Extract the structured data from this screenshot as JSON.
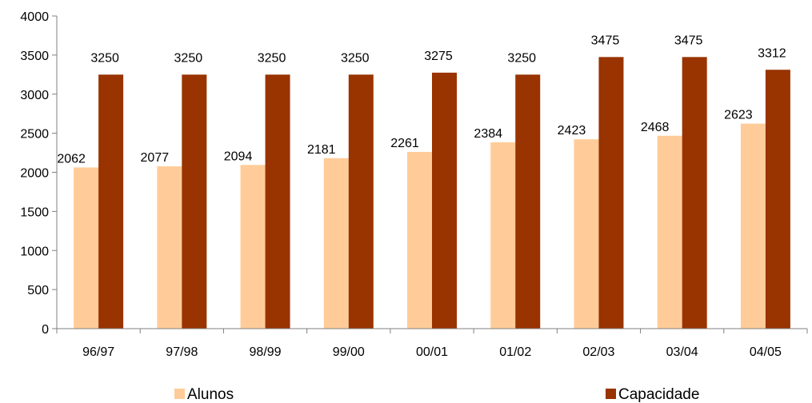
{
  "chart_data": {
    "type": "bar",
    "title": "",
    "xlabel": "",
    "ylabel": "",
    "categories": [
      "96/97",
      "97/98",
      "98/99",
      "99/00",
      "00/01",
      "01/02",
      "02/03",
      "03/04",
      "04/05"
    ],
    "series": [
      {
        "name": "Alunos",
        "color": "#FFCC99",
        "values": [
          2062,
          2077,
          2094,
          2181,
          2261,
          2384,
          2423,
          2468,
          2623
        ]
      },
      {
        "name": "Capacidade",
        "color": "#993300",
        "values": [
          3250,
          3250,
          3250,
          3250,
          3275,
          3250,
          3475,
          3475,
          3312
        ]
      }
    ],
    "ylim": [
      0,
      4000
    ],
    "yticks": [
      0,
      500,
      1000,
      1500,
      2000,
      2500,
      3000,
      3500,
      4000
    ],
    "grid": false,
    "legend_position": "bottom",
    "data_labels": true
  }
}
